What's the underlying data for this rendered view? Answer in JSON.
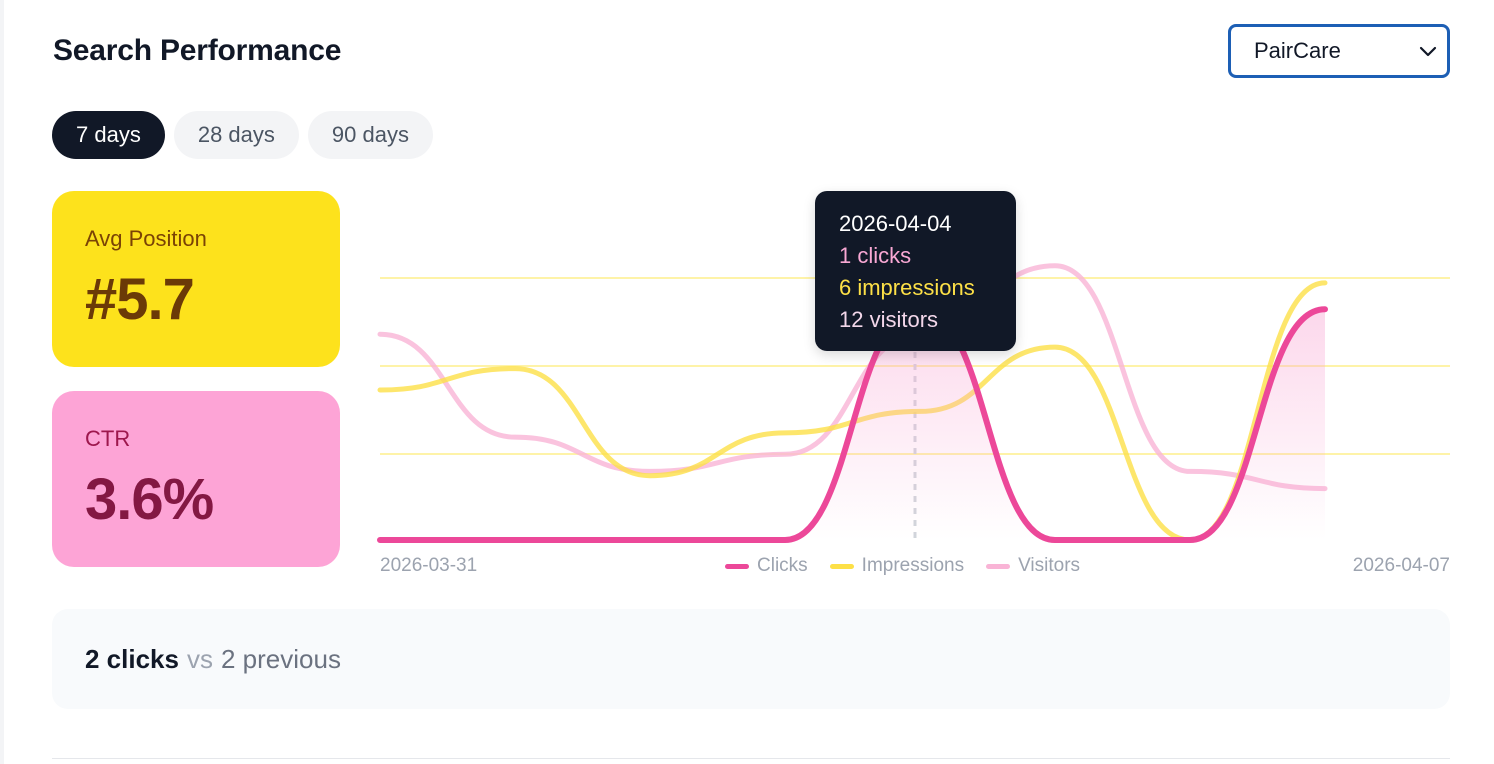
{
  "header": {
    "title": "Search Performance",
    "site_selector": {
      "selected": "PairCare",
      "icon": "chevron-down-icon"
    }
  },
  "range_tabs": [
    {
      "label": "7 days",
      "active": true
    },
    {
      "label": "28 days",
      "active": false
    },
    {
      "label": "90 days",
      "active": false
    }
  ],
  "stats": {
    "avg_position": {
      "label": "Avg Position",
      "value": "#5.7",
      "color": "#fde21c"
    },
    "ctr": {
      "label": "CTR",
      "value": "3.6%",
      "color": "#fda4d6"
    }
  },
  "tooltip": {
    "date": "2026-04-04",
    "clicks": "1 clicks",
    "impressions": "6 impressions",
    "visitors": "12 visitors"
  },
  "summary": {
    "clicks": "2 clicks",
    "vs": "vs",
    "previous": "2 previous"
  },
  "chart_data": {
    "type": "area",
    "x": [
      "2026-03-31",
      "2026-04-01",
      "2026-04-02",
      "2026-04-03",
      "2026-04-04",
      "2026-04-05",
      "2026-04-06",
      "2026-04-07"
    ],
    "x_start_label": "2026-03-31",
    "x_end_label": "2026-04-07",
    "legend_position": "bottom-center",
    "grid": true,
    "hovered_x": "2026-04-04",
    "series": [
      {
        "name": "Clicks",
        "color": "#ec4899",
        "values": [
          0,
          0,
          0,
          0,
          1,
          0,
          0,
          1
        ]
      },
      {
        "name": "Impressions",
        "color": "#fde047",
        "values": [
          7,
          8,
          3,
          5,
          6,
          9,
          0,
          12
        ]
      },
      {
        "name": "Visitors",
        "color": "#f9b4d6",
        "values": [
          12,
          6,
          4,
          5,
          12,
          16,
          4,
          3
        ]
      }
    ]
  }
}
